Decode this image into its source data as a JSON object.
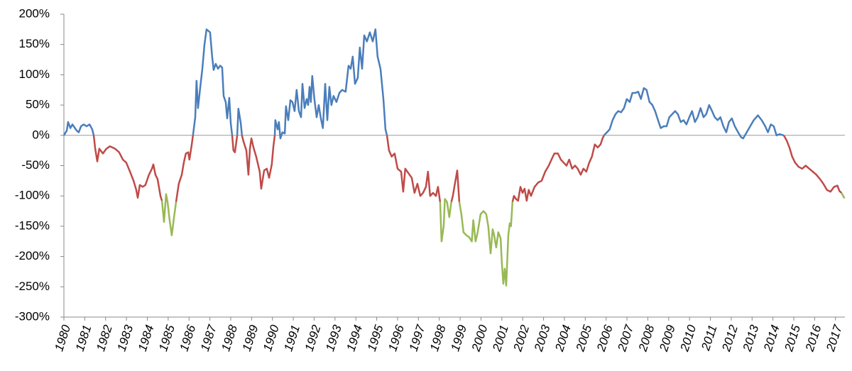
{
  "chart_data": {
    "type": "line",
    "xlim": [
      1980,
      2017.45
    ],
    "xticks": [
      1980,
      1981,
      1982,
      1983,
      1984,
      1985,
      1986,
      1987,
      1988,
      1989,
      1990,
      1991,
      1992,
      1993,
      1994,
      1995,
      1996,
      1997,
      1998,
      1999,
      2000,
      2001,
      2002,
      2003,
      2004,
      2005,
      2006,
      2007,
      2008,
      2009,
      2010,
      2011,
      2012,
      2013,
      2014,
      2015,
      2016,
      2017
    ],
    "ylim": [
      -300,
      200
    ],
    "yticks": [
      {
        "value": -300,
        "label": "-300%"
      },
      {
        "value": -250,
        "label": "-250%"
      },
      {
        "value": -200,
        "label": "-200%"
      },
      {
        "value": -150,
        "label": "-150%"
      },
      {
        "value": -100,
        "label": "-100%"
      },
      {
        "value": -50,
        "label": "-50%"
      },
      {
        "value": 0,
        "label": "0%"
      },
      {
        "value": 50,
        "label": "50%"
      },
      {
        "value": 100,
        "label": "100%"
      },
      {
        "value": 150,
        "label": "150%"
      },
      {
        "value": 200,
        "label": "200%"
      }
    ],
    "series": [
      {
        "color": "#4a7ebb",
        "x": [
          1980.0,
          1980.14,
          1980.2,
          1980.31,
          1980.41,
          1980.61,
          1980.71,
          1980.82,
          1980.95,
          1981.09,
          1981.23,
          1981.36,
          1981.43,
          null,
          1986.19,
          1986.3,
          1986.36,
          1986.43,
          1986.54,
          1986.64,
          1986.74,
          1986.84,
          1987.01,
          1987.11,
          1987.18,
          1987.28,
          1987.39,
          1987.49,
          1987.59,
          1987.66,
          1987.76,
          1987.83,
          1987.93,
          1988.0,
          1988.07,
          null,
          1988.31,
          1988.37,
          1988.48,
          1988.54,
          null,
          1990.11,
          1990.14,
          1990.25,
          1990.31,
          1990.38,
          1990.48,
          1990.59,
          1990.65,
          1990.76,
          1990.86,
          1990.96,
          1991.06,
          1991.16,
          1991.27,
          1991.37,
          1991.44,
          1991.54,
          1991.64,
          1991.71,
          1991.78,
          1991.84,
          1991.91,
          1992.01,
          1992.12,
          1992.22,
          1992.32,
          1992.42,
          1992.53,
          1992.63,
          1992.73,
          1992.83,
          1992.93,
          1993.07,
          1993.21,
          1993.34,
          1993.51,
          1993.65,
          1993.75,
          1993.85,
          1993.96,
          1994.09,
          1994.19,
          1994.3,
          1994.4,
          1994.53,
          1994.67,
          1994.81,
          1994.94,
          1995.04,
          1995.18,
          1995.32,
          1995.42,
          1995.49,
          null,
          2005.9,
          2006.04,
          2006.17,
          2006.31,
          2006.45,
          2006.58,
          2006.72,
          2006.86,
          2006.99,
          2007.13,
          2007.26,
          2007.4,
          2007.54,
          2007.67,
          2007.81,
          2007.94,
          2008.08,
          2008.22,
          2008.35,
          2008.49,
          2008.62,
          2008.76,
          2008.9,
          2009.03,
          2009.17,
          2009.31,
          2009.44,
          2009.58,
          2009.71,
          2009.85,
          2009.99,
          2010.12,
          2010.26,
          2010.39,
          2010.53,
          2010.67,
          2010.8,
          2010.94,
          2011.08,
          2011.21,
          2011.35,
          2011.48,
          2011.62,
          2011.76,
          2011.89,
          2012.03,
          2012.17,
          2012.33,
          2012.47,
          2012.57,
          2012.74,
          2012.91,
          2013.08,
          2013.28,
          2013.46,
          2013.63,
          2013.76,
          2013.9,
          2014.04,
          2014.17,
          2014.31,
          2014.52
        ],
        "values": [
          0,
          8,
          22,
          12,
          18,
          8,
          5,
          15,
          18,
          15,
          18,
          10,
          0,
          null,
          0,
          30,
          90,
          45,
          80,
          110,
          150,
          175,
          170,
          130,
          108,
          118,
          110,
          115,
          112,
          65,
          55,
          28,
          62,
          20,
          0,
          null,
          0,
          44,
          20,
          0,
          null,
          0,
          25,
          10,
          22,
          -5,
          5,
          3,
          48,
          25,
          58,
          55,
          40,
          75,
          40,
          30,
          85,
          45,
          60,
          50,
          80,
          55,
          98,
          60,
          30,
          50,
          28,
          12,
          85,
          25,
          80,
          50,
          65,
          55,
          70,
          75,
          72,
          115,
          110,
          130,
          85,
          95,
          145,
          110,
          165,
          155,
          170,
          155,
          175,
          130,
          110,
          60,
          10,
          0,
          null,
          0,
          5,
          10,
          25,
          35,
          40,
          38,
          45,
          60,
          55,
          70,
          70,
          72,
          60,
          78,
          75,
          55,
          50,
          40,
          25,
          12,
          15,
          15,
          30,
          35,
          40,
          35,
          22,
          25,
          18,
          30,
          40,
          22,
          30,
          45,
          30,
          35,
          50,
          40,
          30,
          25,
          30,
          15,
          5,
          22,
          28,
          15,
          5,
          -3,
          -5,
          5,
          15,
          25,
          33,
          25,
          15,
          5,
          18,
          15,
          0,
          2,
          0
        ]
      },
      {
        "color": "#be4b48",
        "x": [
          1981.43,
          1981.5,
          1981.6,
          1981.7,
          1981.87,
          1982.04,
          1982.21,
          1982.45,
          1982.65,
          1982.83,
          1982.99,
          1983.17,
          1983.34,
          1983.47,
          1983.54,
          1983.64,
          1983.78,
          1983.91,
          1984.08,
          1984.22,
          1984.29,
          1984.39,
          1984.49,
          1984.63,
          1984.7,
          null,
          1985.38,
          1985.51,
          1985.65,
          1985.75,
          1985.85,
          1985.96,
          1986.02,
          1986.13,
          1986.19,
          null,
          1988.07,
          1988.13,
          1988.2,
          1988.31,
          null,
          1988.54,
          1988.61,
          1988.75,
          1988.85,
          1988.92,
          1988.99,
          1989.09,
          1989.22,
          1989.39,
          1989.46,
          1989.6,
          1989.73,
          1989.84,
          1989.97,
          1990.04,
          1990.11,
          null,
          1995.49,
          1995.59,
          1995.72,
          1995.86,
          1996.0,
          1996.17,
          1996.27,
          1996.37,
          1996.51,
          1996.68,
          1996.81,
          1996.95,
          1997.09,
          1997.22,
          1997.36,
          1997.46,
          1997.56,
          1997.7,
          1997.84,
          1997.94,
          1998.04,
          null,
          1998.58,
          1998.65,
          1998.75,
          1998.86,
          1998.96,
          null,
          2001.51,
          2001.58,
          2001.68,
          2001.78,
          2001.89,
          2001.99,
          2002.09,
          2002.19,
          2002.29,
          2002.4,
          2002.57,
          2002.74,
          2002.91,
          2003.08,
          2003.25,
          2003.38,
          2003.52,
          2003.69,
          2003.83,
          2003.96,
          2004.1,
          2004.23,
          2004.37,
          2004.51,
          2004.64,
          2004.78,
          2004.91,
          2005.05,
          2005.19,
          2005.32,
          2005.46,
          2005.6,
          2005.73,
          2005.83,
          2005.9,
          null,
          2014.52,
          2014.65,
          2014.79,
          2014.92,
          2015.06,
          2015.23,
          2015.4,
          2015.57,
          2015.74,
          2015.91,
          2016.08,
          2016.25,
          2016.42,
          2016.59,
          2016.76,
          2016.93,
          2017.09,
          2017.19,
          2017.29
        ],
        "values": [
          0,
          -22,
          -43,
          -22,
          -30,
          -22,
          -18,
          -22,
          -28,
          -40,
          -45,
          -60,
          -75,
          -90,
          -103,
          -82,
          -85,
          -82,
          -65,
          -55,
          -48,
          -65,
          -72,
          -100,
          -108,
          null,
          -110,
          -80,
          -65,
          -45,
          -30,
          -28,
          -40,
          -15,
          0,
          null,
          0,
          -25,
          -28,
          0,
          null,
          0,
          -10,
          -25,
          -65,
          -22,
          -5,
          -20,
          -35,
          -60,
          -88,
          -58,
          -55,
          -70,
          -48,
          -20,
          0,
          null,
          0,
          -25,
          -35,
          -30,
          -55,
          -60,
          -93,
          -55,
          -62,
          -70,
          -95,
          -80,
          -100,
          -95,
          -85,
          -60,
          -100,
          -95,
          -100,
          -85,
          -110,
          null,
          -110,
          -100,
          -80,
          -58,
          -110,
          null,
          -110,
          -100,
          -105,
          -108,
          -85,
          -95,
          -88,
          -108,
          -90,
          -100,
          -85,
          -78,
          -75,
          -60,
          -50,
          -40,
          -30,
          -30,
          -40,
          -45,
          -50,
          -40,
          -55,
          -50,
          -55,
          -65,
          -55,
          -60,
          -45,
          -35,
          -15,
          -20,
          -15,
          -5,
          0,
          null,
          0,
          -8,
          -20,
          -35,
          -45,
          -52,
          -55,
          -50,
          -55,
          -60,
          -65,
          -72,
          -80,
          -90,
          -93,
          -85,
          -83,
          -92,
          -95
        ]
      },
      {
        "color": "#98b954",
        "x": [
          1984.7,
          1984.8,
          1984.9,
          1984.97,
          1985.07,
          1985.17,
          1985.28,
          1985.38,
          null,
          1998.04,
          1998.11,
          1998.21,
          1998.27,
          1998.37,
          1998.48,
          1998.58,
          null,
          1998.96,
          1999.06,
          1999.16,
          1999.3,
          1999.43,
          1999.56,
          1999.63,
          1999.74,
          1999.84,
          1999.98,
          2000.12,
          2000.25,
          2000.35,
          2000.46,
          2000.56,
          2000.63,
          2000.73,
          2000.83,
          2000.94,
          2001.0,
          2001.07,
          2001.14,
          2001.21,
          2001.31,
          2001.38,
          2001.44,
          2001.51,
          null,
          2017.29,
          2017.43
        ],
        "values": [
          -108,
          -143,
          -97,
          -110,
          -140,
          -165,
          -135,
          -110,
          null,
          -110,
          -175,
          -150,
          -105,
          -110,
          -135,
          -110,
          null,
          -110,
          -130,
          -160,
          -165,
          -168,
          -175,
          -140,
          -175,
          -160,
          -130,
          -125,
          -130,
          -150,
          -195,
          -155,
          -165,
          -185,
          -160,
          -170,
          -210,
          -245,
          -220,
          -248,
          -165,
          -145,
          -150,
          -110,
          null,
          -95,
          -104
        ]
      }
    ]
  }
}
